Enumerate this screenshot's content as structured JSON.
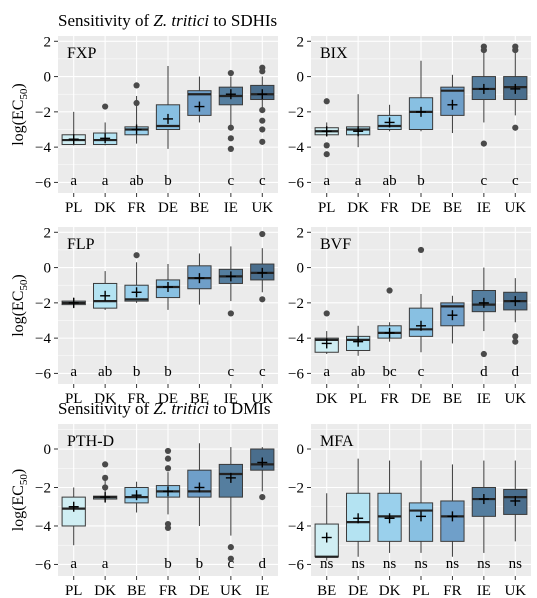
{
  "sections": [
    {
      "title_plain": "Sensitivity of ",
      "title_italic": "Z. tritici",
      "title_rest": " to SDHIs"
    },
    {
      "title_plain": "Sensitivity of ",
      "title_italic": "Z. tritici",
      "title_rest": " to DMIs"
    }
  ],
  "y_axis_label": {
    "main": "log(EC",
    "sub": "50",
    "close": ")"
  },
  "colors": {
    "panel_bg": "#ebebeb",
    "grid": "#ffffff",
    "box_stroke": "#3a3a3a",
    "outlier": "#4a4a4a",
    "fill_scale": [
      "#d0eef3",
      "#b4e3f2",
      "#9ad0ec",
      "#88c0e2",
      "#6f9fc9",
      "#557e9f",
      "#4a6e8d"
    ]
  },
  "chart_data": [
    {
      "type": "box",
      "label": "FXP",
      "ylim": [
        -6.6,
        2.3
      ],
      "yticks": [
        2,
        0,
        -2,
        -4,
        -6
      ],
      "grid": true,
      "categories": [
        "PL",
        "DK",
        "FR",
        "DE",
        "BE",
        "IE",
        "UK"
      ],
      "boxes": [
        {
          "whisker_low": -3.9,
          "q1": -3.85,
          "median": -3.6,
          "q3": -3.3,
          "whisker_high": -2.0,
          "mean": -3.55,
          "outliers": [],
          "letter": "a",
          "fill": 0
        },
        {
          "whisker_low": -3.9,
          "q1": -3.85,
          "median": -3.6,
          "q3": -3.2,
          "whisker_high": -2.6,
          "mean": -3.5,
          "outliers": [
            -1.7
          ],
          "letter": "a",
          "fill": 1
        },
        {
          "whisker_low": -3.8,
          "q1": -3.3,
          "median": -3.0,
          "q3": -2.85,
          "whisker_high": -1.1,
          "mean": -3.0,
          "outliers": [
            -0.5,
            -1.5
          ],
          "letter": "ab",
          "fill": 2
        },
        {
          "whisker_low": -4.1,
          "q1": -3.0,
          "median": -2.8,
          "q3": -1.6,
          "whisker_high": 0.6,
          "mean": -2.4,
          "outliers": [],
          "letter": "b",
          "fill": 3
        },
        {
          "whisker_low": -2.6,
          "q1": -2.2,
          "median": -1.0,
          "q3": -0.8,
          "whisker_high": 0.0,
          "mean": -1.7,
          "outliers": [],
          "letter": "",
          "fill": 4
        },
        {
          "whisker_low": -2.9,
          "q1": -1.6,
          "median": -1.1,
          "q3": -0.6,
          "whisker_high": 0.0,
          "mean": -1.0,
          "outliers": [
            -2.9,
            -3.5,
            -4.1,
            0.2
          ],
          "letter": "c",
          "fill": 5
        },
        {
          "whisker_low": -1.8,
          "q1": -1.3,
          "median": -1.0,
          "q3": -0.5,
          "whisker_high": 0.0,
          "mean": -1.0,
          "outliers": [
            0.5,
            0.3,
            -1.9,
            -2.5,
            -3.0,
            -3.7
          ],
          "letter": "c",
          "fill": 6
        }
      ]
    },
    {
      "type": "box",
      "label": "BIX",
      "ylim": [
        -6.6,
        2.3
      ],
      "yticks": [
        2,
        0,
        -2,
        -4,
        -6
      ],
      "grid": true,
      "categories": [
        "PL",
        "DK",
        "FR",
        "DE",
        "BE",
        "IE",
        "UK"
      ],
      "boxes": [
        {
          "whisker_low": -3.4,
          "q1": -3.3,
          "median": -3.1,
          "q3": -2.9,
          "whisker_high": -2.6,
          "mean": -3.1,
          "outliers": [
            -1.4,
            -3.9,
            -4.4
          ],
          "letter": "a",
          "fill": 0
        },
        {
          "whisker_low": -4.0,
          "q1": -3.3,
          "median": -3.0,
          "q3": -2.85,
          "whisker_high": -1.0,
          "mean": -3.1,
          "outliers": [],
          "letter": "a",
          "fill": 1
        },
        {
          "whisker_low": -3.1,
          "q1": -3.0,
          "median": -2.8,
          "q3": -2.2,
          "whisker_high": -1.6,
          "mean": -2.6,
          "outliers": [],
          "letter": "ab",
          "fill": 2
        },
        {
          "whisker_low": -3.1,
          "q1": -3.0,
          "median": -2.0,
          "q3": -1.2,
          "whisker_high": 0.9,
          "mean": -2.0,
          "outliers": [],
          "letter": "b",
          "fill": 3
        },
        {
          "whisker_low": -3.2,
          "q1": -2.2,
          "median": -0.8,
          "q3": -0.6,
          "whisker_high": 0.1,
          "mean": -1.6,
          "outliers": [],
          "letter": "",
          "fill": 4
        },
        {
          "whisker_low": -2.6,
          "q1": -1.3,
          "median": -0.7,
          "q3": 0.0,
          "whisker_high": 1.7,
          "mean": -0.7,
          "outliers": [
            1.7,
            1.5,
            -3.8
          ],
          "letter": "c",
          "fill": 5
        },
        {
          "whisker_low": -2.2,
          "q1": -1.3,
          "median": -0.6,
          "q3": 0.0,
          "whisker_high": 1.5,
          "mean": -0.7,
          "outliers": [
            1.7,
            1.5,
            -2.9
          ],
          "letter": "c",
          "fill": 6
        }
      ]
    },
    {
      "type": "box",
      "label": "FLP",
      "ylim": [
        -6.6,
        2.3
      ],
      "yticks": [
        2,
        0,
        -2,
        -4,
        -6
      ],
      "grid": true,
      "categories": [
        "PL",
        "DK",
        "FR",
        "DE",
        "BE",
        "IE",
        "UK"
      ],
      "boxes": [
        {
          "whisker_low": -2.3,
          "q1": -2.1,
          "median": -2.0,
          "q3": -1.9,
          "whisker_high": -1.7,
          "mean": -2.0,
          "outliers": [],
          "letter": "a",
          "fill": 0
        },
        {
          "whisker_low": -2.4,
          "q1": -2.3,
          "median": -1.9,
          "q3": -0.9,
          "whisker_high": -0.2,
          "mean": -1.6,
          "outliers": [],
          "letter": "ab",
          "fill": 1
        },
        {
          "whisker_low": -2.0,
          "q1": -1.9,
          "median": -1.8,
          "q3": -1.0,
          "whisker_high": 0.3,
          "mean": -1.4,
          "outliers": [
            0.7
          ],
          "letter": "b",
          "fill": 2
        },
        {
          "whisker_low": -2.4,
          "q1": -1.7,
          "median": -1.1,
          "q3": -0.7,
          "whisker_high": 0.2,
          "mean": -1.1,
          "outliers": [],
          "letter": "b",
          "fill": 3
        },
        {
          "whisker_low": -2.1,
          "q1": -1.2,
          "median": -0.6,
          "q3": 0.1,
          "whisker_high": 0.8,
          "mean": -0.6,
          "outliers": [],
          "letter": "",
          "fill": 4
        },
        {
          "whisker_low": -1.9,
          "q1": -0.9,
          "median": -0.5,
          "q3": -0.1,
          "whisker_high": 1.2,
          "mean": -0.5,
          "outliers": [
            -2.6
          ],
          "letter": "c",
          "fill": 5
        },
        {
          "whisker_low": -1.4,
          "q1": -0.7,
          "median": -0.3,
          "q3": 0.2,
          "whisker_high": 1.1,
          "mean": -0.3,
          "outliers": [
            1.9,
            -1.8
          ],
          "letter": "c",
          "fill": 6
        }
      ]
    },
    {
      "type": "box",
      "label": "BVF",
      "ylim": [
        -6.6,
        2.3
      ],
      "yticks": [
        2,
        0,
        -2,
        -4,
        -6
      ],
      "grid": true,
      "categories": [
        "DK",
        "PL",
        "FR",
        "DE",
        "BE",
        "IE",
        "UK"
      ],
      "boxes": [
        {
          "whisker_low": -4.9,
          "q1": -4.8,
          "median": -4.1,
          "q3": -4.0,
          "whisker_high": -3.6,
          "mean": -4.3,
          "outliers": [
            -2.6
          ],
          "letter": "a",
          "fill": 0
        },
        {
          "whisker_low": -5.0,
          "q1": -4.7,
          "median": -4.1,
          "q3": -3.9,
          "whisker_high": -3.3,
          "mean": -4.2,
          "outliers": [],
          "letter": "ab",
          "fill": 1
        },
        {
          "whisker_low": -4.2,
          "q1": -4.0,
          "median": -3.7,
          "q3": -3.3,
          "whisker_high": -3.1,
          "mean": -3.7,
          "outliers": [
            -1.3
          ],
          "letter": "bc",
          "fill": 2
        },
        {
          "whisker_low": -4.8,
          "q1": -3.9,
          "median": -3.5,
          "q3": -2.3,
          "whisker_high": -1.5,
          "mean": -3.3,
          "outliers": [
            1.0
          ],
          "letter": "c",
          "fill": 3
        },
        {
          "whisker_low": -4.3,
          "q1": -3.3,
          "median": -2.2,
          "q3": -2.0,
          "whisker_high": -1.6,
          "mean": -2.7,
          "outliers": [],
          "letter": "",
          "fill": 4
        },
        {
          "whisker_low": -3.6,
          "q1": -2.5,
          "median": -2.1,
          "q3": -1.3,
          "whisker_high": 0.0,
          "mean": -2.0,
          "outliers": [
            -4.9
          ],
          "letter": "d",
          "fill": 5
        },
        {
          "whisker_low": -3.1,
          "q1": -2.4,
          "median": -1.9,
          "q3": -1.4,
          "whisker_high": -0.6,
          "mean": -1.9,
          "outliers": [
            -3.9,
            -4.2
          ],
          "letter": "d",
          "fill": 6
        }
      ]
    },
    {
      "type": "box",
      "label": "PTH-D",
      "ylim": [
        -6.6,
        1.3
      ],
      "yticks": [
        0,
        -2,
        -4,
        -6
      ],
      "grid": true,
      "categories": [
        "PL",
        "DK",
        "BE",
        "FR",
        "DE",
        "UK",
        "IE"
      ],
      "boxes": [
        {
          "whisker_low": -5.0,
          "q1": -4.0,
          "median": -3.1,
          "q3": -2.5,
          "whisker_high": -2.0,
          "mean": -3.0,
          "outliers": [],
          "letter": "a",
          "fill": 0
        },
        {
          "whisker_low": -2.8,
          "q1": -2.6,
          "median": -2.5,
          "q3": -2.45,
          "whisker_high": -1.5,
          "mean": -2.5,
          "outliers": [
            -0.8,
            -1.5,
            -2.0
          ],
          "letter": "a",
          "fill": 1
        },
        {
          "whisker_low": -3.3,
          "q1": -2.8,
          "median": -2.5,
          "q3": -2.0,
          "whisker_high": -1.7,
          "mean": -2.4,
          "outliers": [],
          "letter": "",
          "fill": 2
        },
        {
          "whisker_low": -3.4,
          "q1": -2.5,
          "median": -2.2,
          "q3": -1.9,
          "whisker_high": -1.2,
          "mean": -2.2,
          "outliers": [
            -0.1,
            -0.5,
            -1.0,
            -3.9,
            -4.1
          ],
          "letter": "b",
          "fill": 3
        },
        {
          "whisker_low": -4.0,
          "q1": -2.5,
          "median": -2.2,
          "q3": -1.1,
          "whisker_high": 0.3,
          "mean": -2.0,
          "outliers": [],
          "letter": "b",
          "fill": 4
        },
        {
          "whisker_low": -4.5,
          "q1": -2.5,
          "median": -1.3,
          "q3": -0.8,
          "whisker_high": 0.1,
          "mean": -1.5,
          "outliers": [
            -5.1,
            -5.7
          ],
          "letter": "c",
          "fill": 5
        },
        {
          "whisker_low": -2.2,
          "q1": -1.1,
          "median": -0.8,
          "q3": 0.0,
          "whisker_high": 0.1,
          "mean": -0.7,
          "outliers": [
            -2.5
          ],
          "letter": "d",
          "fill": 6
        }
      ]
    },
    {
      "type": "box",
      "label": "MFA",
      "ylim": [
        -6.6,
        1.3
      ],
      "yticks": [
        0,
        -2,
        -4,
        -6
      ],
      "grid": true,
      "categories": [
        "BE",
        "DE",
        "DK",
        "PL",
        "FR",
        "IE",
        "UK"
      ],
      "boxes": [
        {
          "whisker_low": -5.8,
          "q1": -5.6,
          "median": -5.6,
          "q3": -3.9,
          "whisker_high": -2.3,
          "mean": -4.6,
          "outliers": [],
          "letter": "ns",
          "fill": 0
        },
        {
          "whisker_low": -5.6,
          "q1": -4.8,
          "median": -3.8,
          "q3": -2.3,
          "whisker_high": -0.5,
          "mean": -3.6,
          "outliers": [],
          "letter": "ns",
          "fill": 1
        },
        {
          "whisker_low": -5.4,
          "q1": -4.8,
          "median": -3.5,
          "q3": -2.3,
          "whisker_high": -0.6,
          "mean": -3.6,
          "outliers": [],
          "letter": "ns",
          "fill": 2
        },
        {
          "whisker_low": -5.4,
          "q1": -4.8,
          "median": -3.2,
          "q3": -2.8,
          "whisker_high": -0.6,
          "mean": -3.5,
          "outliers": [],
          "letter": "ns",
          "fill": 3
        },
        {
          "whisker_low": -5.6,
          "q1": -4.8,
          "median": -3.5,
          "q3": -2.7,
          "whisker_high": -0.8,
          "mean": -3.5,
          "outliers": [],
          "letter": "ns",
          "fill": 4
        },
        {
          "whisker_low": -5.4,
          "q1": -3.5,
          "median": -2.6,
          "q3": -2.0,
          "whisker_high": -0.6,
          "mean": -2.6,
          "outliers": [],
          "letter": "ns",
          "fill": 5
        },
        {
          "whisker_low": -4.8,
          "q1": -3.4,
          "median": -2.5,
          "q3": -2.1,
          "whisker_high": -0.6,
          "mean": -2.7,
          "outliers": [],
          "letter": "ns",
          "fill": 6
        }
      ]
    }
  ]
}
